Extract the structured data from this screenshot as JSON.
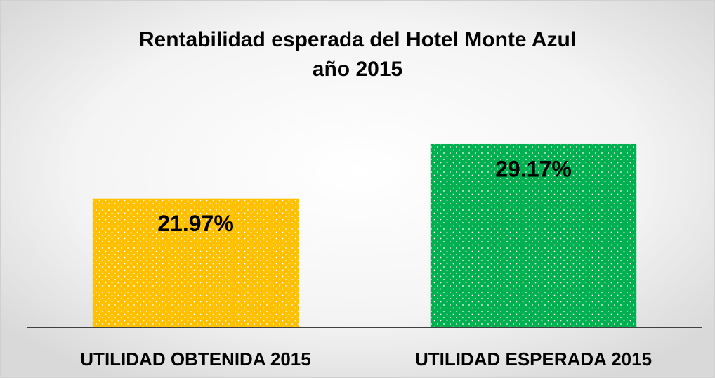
{
  "chart_data": {
    "type": "bar",
    "title": [
      "Rentabilidad esperada del Hotel Monte Azul",
      "año 2015"
    ],
    "categories": [
      "UTILIDAD OBTENIDA 2015",
      "UTILIDAD ESPERADA 2015"
    ],
    "values": [
      21.97,
      29.17
    ],
    "value_labels": [
      "21.97%",
      "29.17%"
    ],
    "colors": [
      "#ffc000",
      "#00b050"
    ],
    "ylim": [
      5,
      35
    ]
  }
}
